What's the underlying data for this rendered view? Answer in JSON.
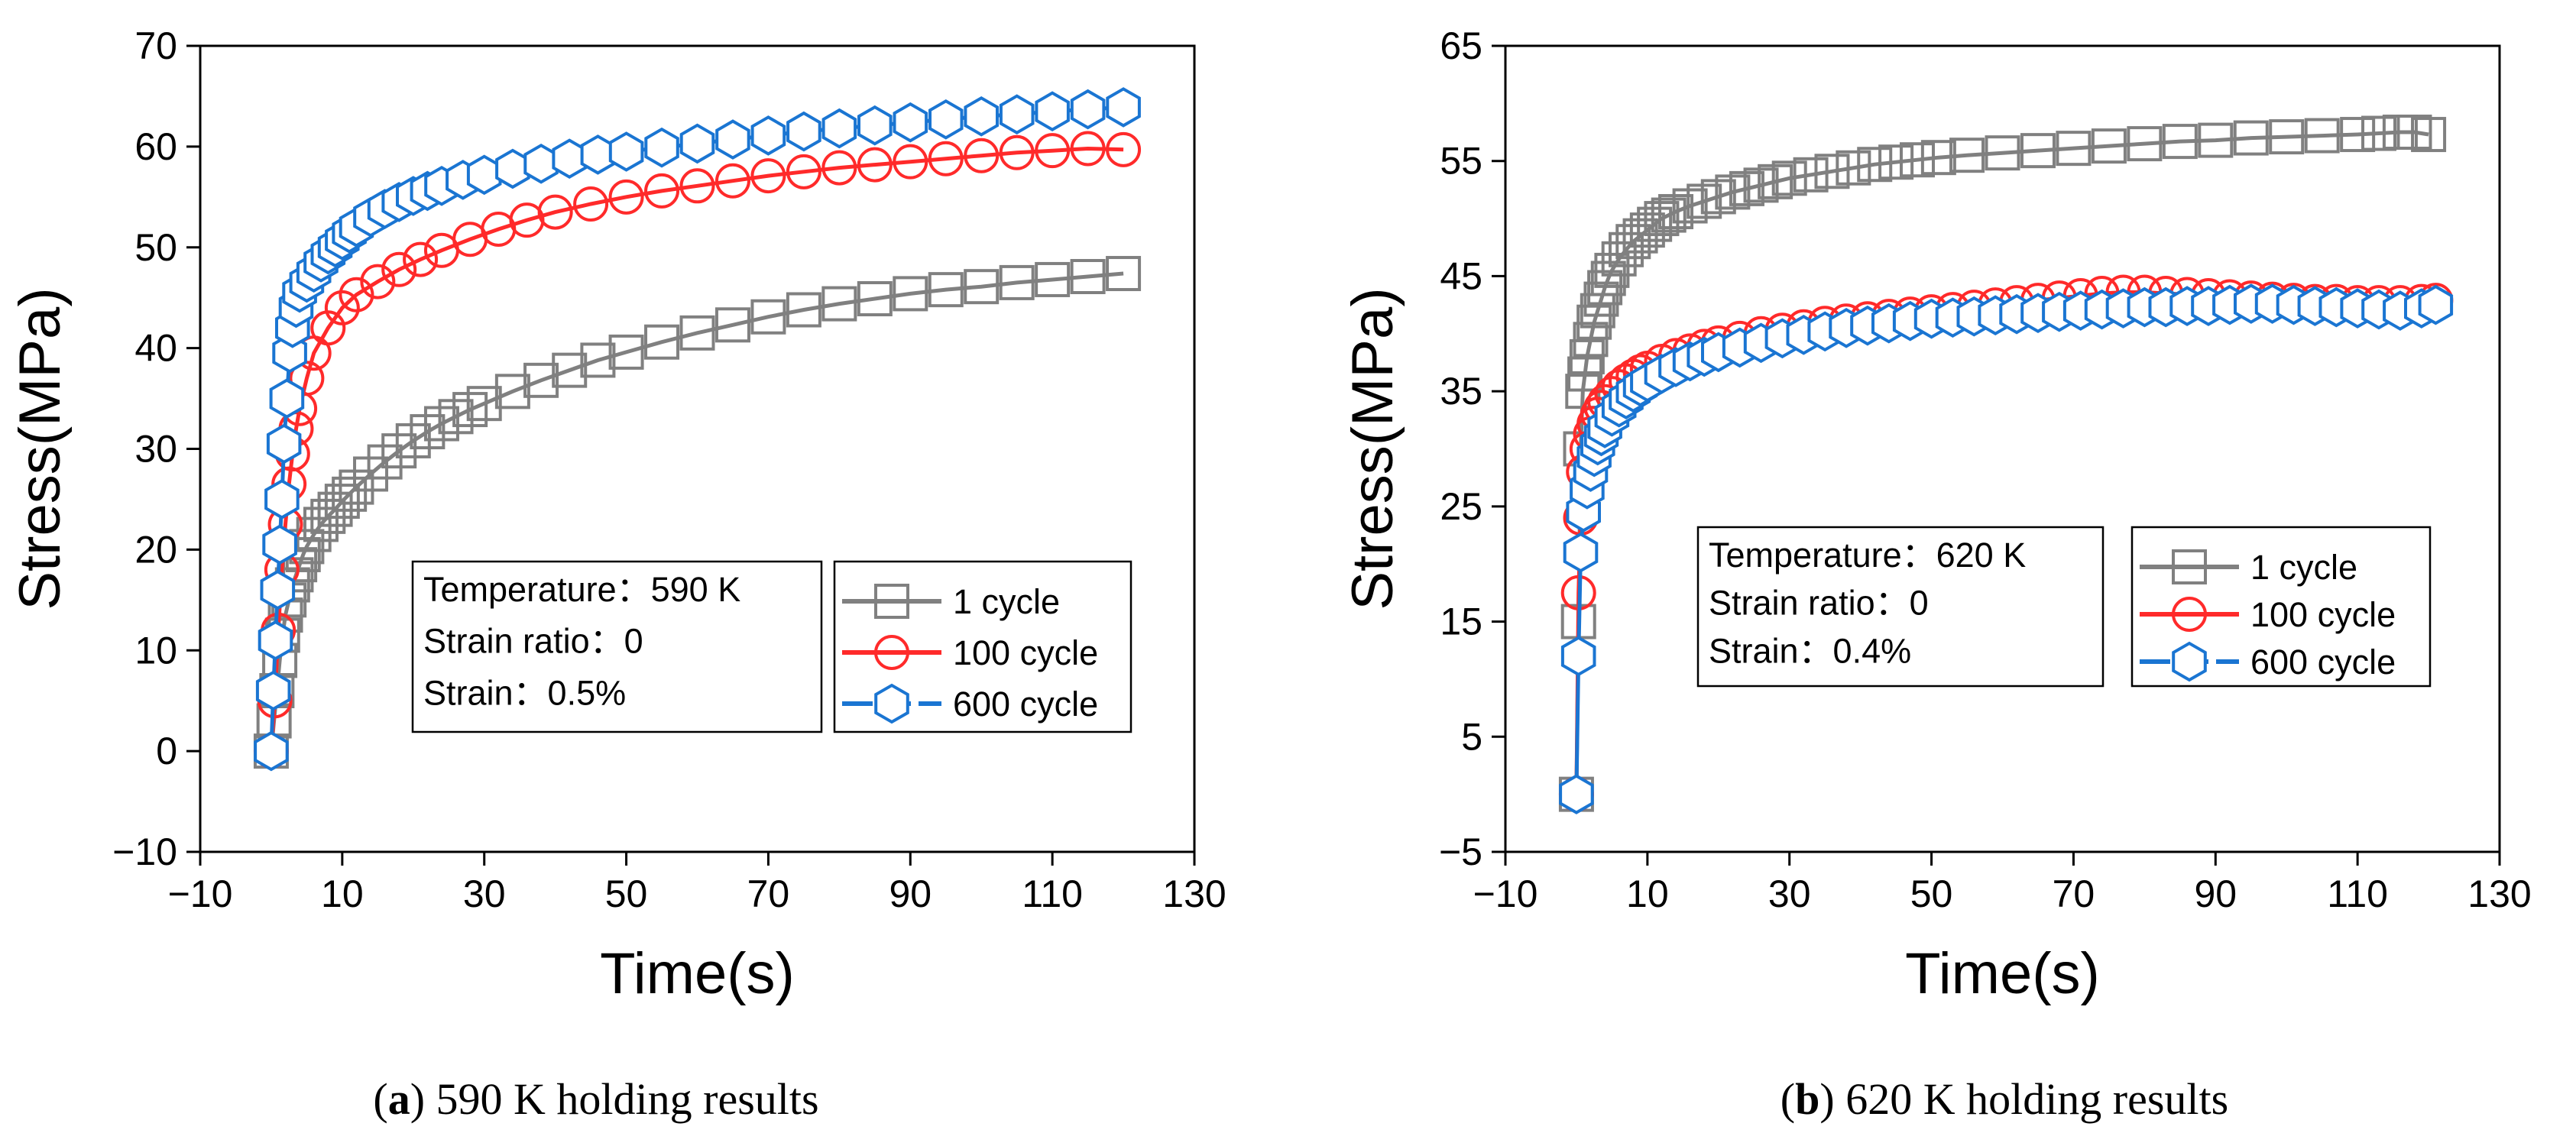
{
  "chart_data": [
    {
      "type": "scatter",
      "panel_letter": "a",
      "caption": "590 K holding results",
      "xlabel": "Time(s)",
      "ylabel": "Stress(MPa)",
      "xlim": [
        -10,
        130
      ],
      "ylim": [
        -10,
        70
      ],
      "xticks": [
        -10,
        10,
        30,
        50,
        70,
        90,
        110,
        130
      ],
      "yticks": [
        -10,
        0,
        10,
        20,
        30,
        40,
        50,
        60,
        70
      ],
      "xtick_labels": [
        "−10",
        "10",
        "30",
        "50",
        "70",
        "90",
        "110",
        "130"
      ],
      "ytick_labels": [
        "−10",
        "0",
        "10",
        "20",
        "30",
        "40",
        "50",
        "60",
        "70"
      ],
      "info_box": [
        "Temperature：590 K",
        "Strain ratio：0",
        "Strain：0.5%"
      ],
      "legend": [
        "1 cycle",
        "100 cycle",
        "600 cycle"
      ],
      "series": [
        {
          "name": "1 cycle",
          "marker": "square",
          "color": "#808080",
          "x": [
            0,
            0.4,
            0.8,
            1.2,
            1.6,
            2,
            2.5,
            3,
            3.5,
            4,
            4.5,
            5,
            6,
            7,
            8,
            9,
            10,
            11,
            12,
            14,
            16,
            18,
            20,
            22,
            24,
            26,
            28,
            30,
            34,
            38,
            42,
            46,
            50,
            55,
            60,
            65,
            70,
            75,
            80,
            85,
            90,
            95,
            100,
            105,
            110,
            115,
            120
          ],
          "y": [
            0,
            3,
            6,
            9,
            11.5,
            13.5,
            15,
            16.5,
            17.5,
            18.5,
            19.5,
            20.3,
            21.5,
            22.5,
            23.3,
            24,
            24.8,
            25.5,
            26.2,
            27.5,
            28.7,
            29.8,
            30.8,
            31.7,
            32.5,
            33.2,
            33.9,
            34.5,
            35.7,
            36.8,
            37.8,
            38.8,
            39.6,
            40.6,
            41.5,
            42.3,
            43.1,
            43.8,
            44.4,
            44.9,
            45.4,
            45.8,
            46.1,
            46.5,
            46.8,
            47.1,
            47.4
          ]
        },
        {
          "name": "100 cycle",
          "marker": "circle",
          "color": "#ff2a2a",
          "x": [
            0,
            0.5,
            1,
            1.5,
            2,
            2.5,
            3,
            3.5,
            4,
            5,
            6,
            8,
            10,
            12,
            15,
            18,
            21,
            24,
            28,
            32,
            36,
            40,
            45,
            50,
            55,
            60,
            65,
            70,
            75,
            80,
            85,
            90,
            95,
            100,
            105,
            110,
            115,
            120
          ],
          "y": [
            0,
            5,
            12,
            18,
            22.5,
            26.5,
            29.5,
            32,
            34,
            37,
            39.5,
            42,
            44,
            45.3,
            46.6,
            47.8,
            48.8,
            49.7,
            50.8,
            51.8,
            52.7,
            53.5,
            54.3,
            55,
            55.6,
            56.1,
            56.6,
            57.1,
            57.5,
            57.9,
            58.2,
            58.5,
            58.8,
            59.1,
            59.4,
            59.6,
            59.8,
            59.7
          ]
        },
        {
          "name": "600 cycle",
          "marker": "hexagon",
          "color": "#1a75d2",
          "x": [
            0,
            0.3,
            0.6,
            0.9,
            1.2,
            1.5,
            1.8,
            2.2,
            2.6,
            3,
            3.5,
            4,
            5,
            6,
            7,
            8,
            9,
            10,
            11,
            12,
            14,
            16,
            18,
            20,
            22,
            24,
            27,
            30,
            34,
            38,
            42,
            46,
            50,
            55,
            60,
            65,
            70,
            75,
            80,
            85,
            90,
            95,
            100,
            105,
            110,
            115,
            120
          ],
          "y": [
            0,
            6,
            11,
            16,
            20.5,
            25,
            30.5,
            35,
            39.5,
            42,
            44,
            45.5,
            46.5,
            47.5,
            48.5,
            49.3,
            50,
            50.7,
            51.4,
            52,
            53,
            53.8,
            54.5,
            55.1,
            55.6,
            56.1,
            56.7,
            57.2,
            57.8,
            58.3,
            58.8,
            59.2,
            59.5,
            59.9,
            60.3,
            60.7,
            61.1,
            61.5,
            61.8,
            62.1,
            62.4,
            62.7,
            63,
            63.2,
            63.5,
            63.7,
            63.9
          ]
        }
      ]
    },
    {
      "type": "scatter",
      "panel_letter": "b",
      "caption": "620 K holding results",
      "xlabel": "Time(s)",
      "ylabel": "Stress(MPa)",
      "xlim": [
        -10,
        130
      ],
      "ylim": [
        -5,
        65
      ],
      "xticks": [
        -10,
        10,
        30,
        50,
        70,
        90,
        110,
        130
      ],
      "yticks": [
        -5,
        5,
        15,
        25,
        35,
        45,
        55,
        65
      ],
      "xtick_labels": [
        "−10",
        "10",
        "30",
        "50",
        "70",
        "90",
        "110",
        "130"
      ],
      "ytick_labels": [
        "−5",
        "5",
        "15",
        "25",
        "35",
        "45",
        "55",
        "65"
      ],
      "info_box": [
        "Temperature：620 K",
        "Strain ratio：0",
        "Strain：0.4%"
      ],
      "legend": [
        "1 cycle",
        "100 cycle",
        "600 cycle"
      ],
      "series": [
        {
          "name": "1 cycle",
          "marker": "square",
          "color": "#808080",
          "x": [
            0,
            0.3,
            0.6,
            0.9,
            1.2,
            1.5,
            2,
            2.5,
            3,
            3.5,
            4,
            4.5,
            5,
            6,
            7,
            8,
            9,
            10,
            11,
            12,
            13,
            14,
            16,
            18,
            20,
            22,
            24,
            26,
            28,
            30,
            33,
            36,
            39,
            42,
            45,
            48,
            51,
            55,
            60,
            65,
            70,
            75,
            80,
            85,
            90,
            95,
            100,
            105,
            110,
            113,
            116,
            118,
            120
          ],
          "y": [
            0,
            15,
            30,
            35,
            36.5,
            38,
            39.5,
            41,
            42,
            43,
            44,
            44.8,
            45.5,
            46.5,
            47.3,
            48,
            48.5,
            49,
            49.5,
            50,
            50.3,
            50.6,
            51.1,
            51.5,
            51.9,
            52.3,
            52.6,
            52.9,
            53.2,
            53.5,
            53.8,
            54.1,
            54.4,
            54.7,
            54.9,
            55.1,
            55.3,
            55.5,
            55.7,
            55.9,
            56.1,
            56.3,
            56.5,
            56.7,
            56.8,
            57,
            57.1,
            57.2,
            57.3,
            57.4,
            57.5,
            57.5,
            57.3
          ]
        },
        {
          "name": "100 cycle",
          "marker": "circle",
          "color": "#ff2a2a",
          "x": [
            0,
            0.3,
            0.6,
            1,
            1.5,
            2,
            2.5,
            3,
            3.5,
            4,
            5,
            6,
            7,
            8,
            9,
            10,
            12,
            14,
            16,
            18,
            20,
            23,
            26,
            29,
            32,
            35,
            38,
            41,
            44,
            47,
            50,
            53,
            56,
            59,
            62,
            65,
            68,
            71,
            74,
            77,
            80,
            83,
            86,
            89,
            92,
            95,
            98,
            101,
            104,
            107,
            110,
            113,
            116,
            119,
            121
          ],
          "y": [
            0,
            17.5,
            24,
            28,
            30,
            31.3,
            32.2,
            33,
            33.6,
            34.1,
            34.8,
            35.4,
            35.9,
            36.3,
            36.7,
            37,
            37.6,
            38.1,
            38.5,
            38.9,
            39.2,
            39.6,
            40,
            40.3,
            40.6,
            40.9,
            41.1,
            41.3,
            41.5,
            41.7,
            41.9,
            42.1,
            42.3,
            42.5,
            42.7,
            42.9,
            43.1,
            43.3,
            43.5,
            43.6,
            43.6,
            43.5,
            43.4,
            43.3,
            43.2,
            43.1,
            43,
            42.9,
            42.8,
            42.8,
            42.7,
            42.7,
            42.7,
            42.8,
            42.9
          ]
        },
        {
          "name": "600 cycle",
          "marker": "hexagon",
          "color": "#1a75d2",
          "x": [
            0,
            0.3,
            0.6,
            1,
            1.5,
            2,
            2.5,
            3,
            3.5,
            4,
            5,
            6,
            7,
            8,
            9,
            10,
            12,
            14,
            16,
            18,
            20,
            23,
            26,
            29,
            32,
            35,
            38,
            41,
            44,
            47,
            50,
            53,
            56,
            59,
            62,
            65,
            68,
            71,
            74,
            77,
            80,
            83,
            86,
            89,
            92,
            95,
            98,
            101,
            104,
            107,
            110,
            113,
            116,
            119,
            121
          ],
          "y": [
            0,
            12,
            21,
            24.5,
            26.5,
            28,
            29.3,
            30.3,
            31.1,
            31.8,
            32.8,
            33.6,
            34.3,
            34.9,
            35.4,
            35.8,
            36.5,
            37.1,
            37.6,
            38,
            38.4,
            38.8,
            39.2,
            39.6,
            39.9,
            40.2,
            40.5,
            40.7,
            40.9,
            41.1,
            41.3,
            41.4,
            41.5,
            41.6,
            41.7,
            41.8,
            41.9,
            42,
            42.1,
            42.2,
            42.3,
            42.3,
            42.4,
            42.4,
            42.5,
            42.6,
            42.6,
            42.5,
            42.4,
            42.3,
            42.2,
            42.1,
            42,
            42.2,
            42.5
          ]
        }
      ]
    }
  ]
}
